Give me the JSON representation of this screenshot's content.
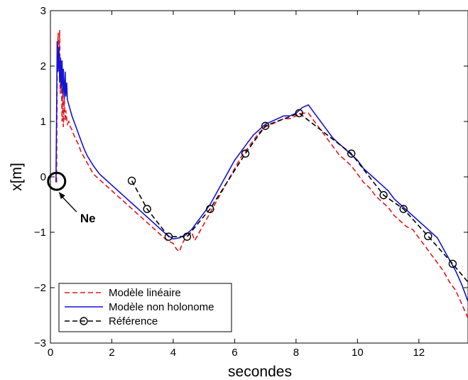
{
  "chart_data": {
    "type": "line",
    "xlabel": "secondes",
    "ylabel": "x[m]",
    "xlim": [
      0,
      13.6
    ],
    "ylim": [
      -3,
      3
    ],
    "xticks": [
      0,
      2,
      4,
      6,
      8,
      10,
      12
    ],
    "yticks": [
      -3,
      -2,
      -1,
      0,
      1,
      2,
      3
    ],
    "grid": false,
    "legend_position": "bottom-left",
    "series": [
      {
        "name": "Modèle linéaire",
        "color": "#e8141b",
        "dash": "dashed",
        "marker": "none",
        "x": [
          0.2,
          0.22,
          0.25,
          0.27,
          0.3,
          0.32,
          0.35,
          0.38,
          0.4,
          0.42,
          0.45,
          0.48,
          0.5,
          0.55,
          0.6,
          0.65,
          0.7,
          0.8,
          0.9,
          1.0,
          1.1,
          1.2,
          1.4,
          1.6,
          1.8,
          2.0,
          2.2,
          2.4,
          2.6,
          2.8,
          3.0,
          3.2,
          3.4,
          3.6,
          3.8,
          4.0,
          4.1,
          4.2,
          4.3,
          4.4,
          4.5,
          4.6,
          4.7,
          4.8,
          5.0,
          5.2,
          5.4,
          5.6,
          5.8,
          6.0,
          6.2,
          6.4,
          6.6,
          6.8,
          7.0,
          7.2,
          7.4,
          7.6,
          7.8,
          8.0,
          8.2,
          8.4,
          8.6,
          8.8,
          9.0,
          9.2,
          9.4,
          9.6,
          9.8,
          10.0,
          10.2,
          10.4,
          10.6,
          10.8,
          11.0,
          11.2,
          11.4,
          11.6,
          11.8,
          12.0,
          12.2,
          12.4,
          12.6,
          12.8,
          13.0,
          13.2,
          13.4,
          13.6
        ],
        "y": [
          -0.1,
          1.8,
          2.6,
          2.0,
          2.65,
          1.5,
          2.1,
          1.0,
          1.6,
          0.9,
          1.4,
          1.0,
          1.2,
          0.95,
          1.0,
          0.9,
          0.85,
          0.7,
          0.6,
          0.45,
          0.35,
          0.25,
          0.05,
          -0.05,
          -0.15,
          -0.25,
          -0.35,
          -0.45,
          -0.55,
          -0.65,
          -0.75,
          -0.85,
          -0.95,
          -1.05,
          -1.15,
          -1.2,
          -1.3,
          -1.35,
          -1.2,
          -1.1,
          -1.05,
          -1.0,
          -1.15,
          -1.05,
          -0.85,
          -0.65,
          -0.45,
          -0.25,
          -0.05,
          0.15,
          0.35,
          0.5,
          0.65,
          0.8,
          0.9,
          0.95,
          1.0,
          1.05,
          1.05,
          1.1,
          1.15,
          1.15,
          1.0,
          0.85,
          0.7,
          0.55,
          0.4,
          0.3,
          0.2,
          0.05,
          -0.1,
          -0.2,
          -0.35,
          -0.45,
          -0.55,
          -0.7,
          -0.8,
          -0.9,
          -0.95,
          -1.1,
          -1.25,
          -1.4,
          -1.55,
          -1.7,
          -1.9,
          -2.05,
          -2.3,
          -2.55
        ]
      },
      {
        "name": "Modèle non holonome",
        "color": "#1414d4",
        "dash": "solid",
        "marker": "none",
        "x": [
          0.18,
          0.2,
          0.22,
          0.25,
          0.28,
          0.3,
          0.33,
          0.35,
          0.38,
          0.4,
          0.42,
          0.45,
          0.48,
          0.5,
          0.53,
          0.55,
          0.6,
          0.65,
          0.7,
          0.8,
          0.9,
          1.0,
          1.1,
          1.2,
          1.4,
          1.6,
          1.8,
          2.0,
          2.2,
          2.4,
          2.6,
          2.8,
          3.0,
          3.2,
          3.4,
          3.6,
          3.8,
          4.0,
          4.2,
          4.4,
          4.6,
          4.8,
          5.0,
          5.2,
          5.4,
          5.6,
          5.8,
          6.0,
          6.2,
          6.4,
          6.6,
          6.8,
          7.0,
          7.2,
          7.4,
          7.6,
          7.8,
          8.0,
          8.2,
          8.4,
          8.6,
          8.8,
          9.0,
          9.2,
          9.4,
          9.6,
          9.8,
          10.0,
          10.2,
          10.4,
          10.6,
          10.8,
          11.0,
          11.2,
          11.4,
          11.6,
          11.8,
          12.0,
          12.2,
          12.4,
          12.6,
          12.8,
          13.0,
          13.2,
          13.4,
          13.6
        ],
        "y": [
          -0.1,
          1.0,
          2.45,
          1.9,
          2.35,
          1.7,
          2.15,
          1.6,
          2.1,
          1.5,
          1.95,
          1.4,
          1.9,
          1.45,
          1.7,
          1.4,
          1.3,
          1.2,
          1.1,
          0.95,
          0.8,
          0.65,
          0.5,
          0.38,
          0.2,
          0.05,
          -0.05,
          -0.15,
          -0.25,
          -0.35,
          -0.45,
          -0.55,
          -0.65,
          -0.75,
          -0.85,
          -0.95,
          -1.05,
          -1.12,
          -1.1,
          -1.05,
          -0.95,
          -0.8,
          -0.65,
          -0.5,
          -0.3,
          -0.1,
          0.1,
          0.3,
          0.45,
          0.6,
          0.75,
          0.85,
          0.95,
          1.0,
          1.05,
          1.1,
          1.1,
          1.15,
          1.25,
          1.3,
          1.15,
          1.0,
          0.85,
          0.7,
          0.6,
          0.5,
          0.4,
          0.3,
          0.15,
          0.05,
          -0.05,
          -0.15,
          -0.25,
          -0.4,
          -0.5,
          -0.6,
          -0.7,
          -0.8,
          -0.9,
          -1.0,
          -1.1,
          -1.3,
          -1.5,
          -1.7,
          -1.95,
          -2.25
        ]
      },
      {
        "name": "Référence",
        "color": "#000000",
        "dash": "dashed",
        "marker": "circle",
        "x": [
          2.65,
          3.15,
          3.85,
          4.45,
          5.2,
          6.35,
          7.0,
          8.1,
          9.8,
          10.85,
          11.5,
          12.3,
          13.1,
          13.6
        ],
        "y": [
          -0.07,
          -0.58,
          -1.08,
          -1.08,
          -0.58,
          0.42,
          0.92,
          1.15,
          0.42,
          -0.33,
          -0.58,
          -1.07,
          -1.57,
          -1.9
        ]
      }
    ],
    "annotations": [
      {
        "text": "Ne",
        "x": 0.18,
        "y": -0.08
      }
    ]
  }
}
